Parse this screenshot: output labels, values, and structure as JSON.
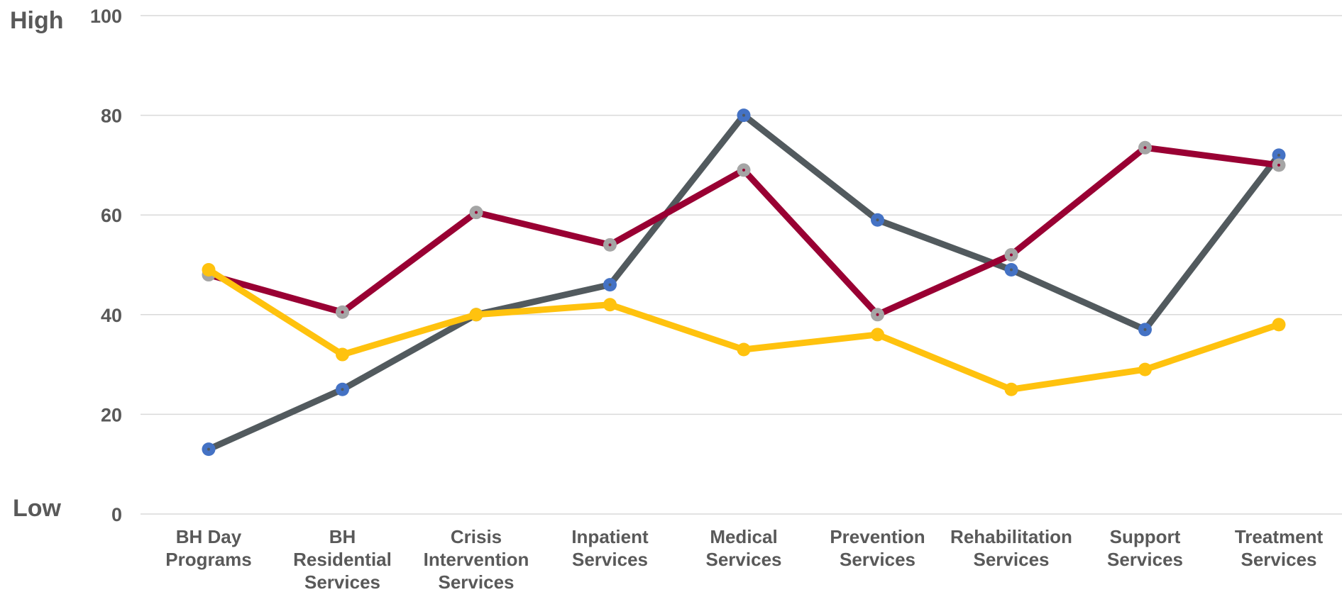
{
  "chart_data": {
    "type": "line",
    "title": "",
    "xlabel": "",
    "ylabel": "",
    "y_high_label": "High",
    "y_low_label": "Low",
    "ylim": [
      0,
      100
    ],
    "yticks": [
      "0",
      "20",
      "40",
      "60",
      "80",
      "100"
    ],
    "grid": true,
    "legend": "none",
    "categories": [
      [
        "BH Day",
        "Programs"
      ],
      [
        "BH",
        "Residential",
        "Services"
      ],
      [
        "Crisis",
        "Intervention",
        "Services"
      ],
      [
        "Inpatient",
        "Services"
      ],
      [
        "Medical",
        "Services"
      ],
      [
        "Prevention",
        "Services"
      ],
      [
        "Rehabilitation",
        "Services"
      ],
      [
        "Support",
        "Services"
      ],
      [
        "Treatment",
        "Services"
      ]
    ],
    "series": [
      {
        "color": "#525A5E",
        "marker_color": "#4472C4",
        "values": [
          13,
          25,
          40,
          46,
          80,
          59,
          49,
          37,
          72
        ]
      },
      {
        "color": "#990033",
        "marker_color": "#A5A5A5",
        "values": [
          48,
          40.5,
          60.5,
          54,
          69,
          40,
          52,
          73.5,
          70
        ]
      },
      {
        "color": "#FFC20E",
        "marker_color": "#FFC20E",
        "values": [
          49,
          32,
          40,
          42,
          33,
          36,
          25,
          29,
          38
        ]
      }
    ]
  }
}
